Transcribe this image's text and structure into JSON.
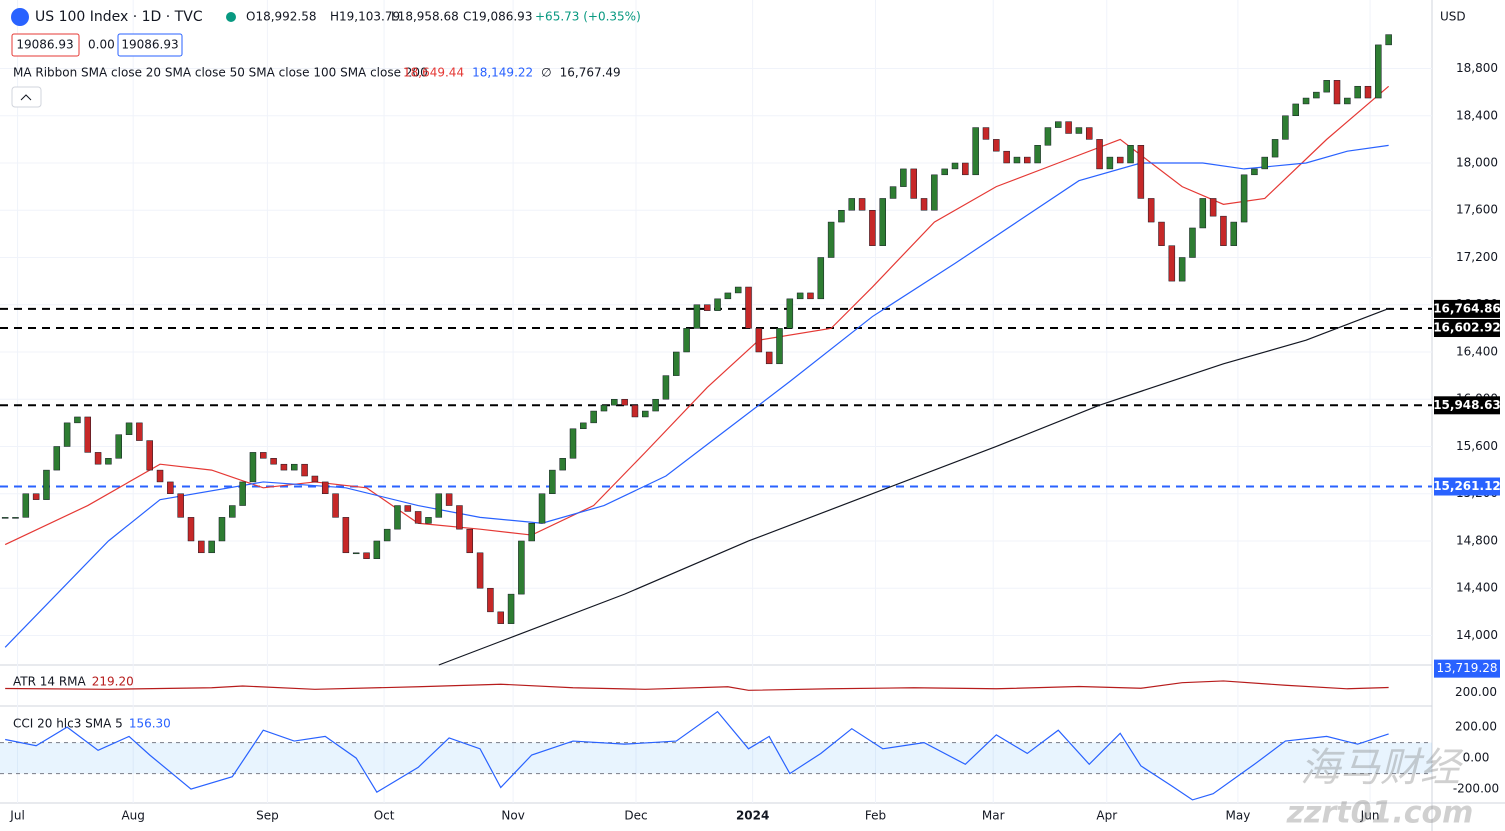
{
  "chart_data": {
    "type": "candlestick",
    "header": {
      "symbol": "US 100 Index · 1D · TVC",
      "open": "O18,992.58",
      "high": "H19,103.79",
      "low": "L18,958.68",
      "close": "C19,086.93",
      "change": "+65.73 (+0.35%)"
    },
    "price_boxes": [
      "19086.93",
      "0.00",
      "19086.93"
    ],
    "currency": "USD",
    "ma_legend": "MA Ribbon SMA close 20 SMA close 50 SMA close 100 SMA close 200",
    "ma_values": [
      {
        "label": "18,649.44",
        "color": "#e53935"
      },
      {
        "label": "18,149.22",
        "color": "#2962ff"
      },
      {
        "label": "∅",
        "color": "#131722"
      },
      {
        "label": "16,767.49",
        "color": "#131722"
      }
    ],
    "closes": [
      15000,
      15000,
      15200,
      15150,
      15400,
      15600,
      15800,
      15850,
      15550,
      15450,
      15500,
      15700,
      15800,
      15650,
      15400,
      15300,
      15200,
      15000,
      14800,
      14700,
      14800,
      15000,
      15100,
      15300,
      15550,
      15500,
      15450,
      15400,
      15450,
      15350,
      15300,
      15200,
      15000,
      14700,
      14700,
      14650,
      14800,
      14900,
      15100,
      15050,
      14950,
      15000,
      15200,
      15100,
      14900,
      14700,
      14400,
      14200,
      14100,
      14350,
      14800,
      14950,
      15200,
      15400,
      15500,
      15750,
      15800,
      15900,
      15950,
      16000,
      15950,
      15850,
      15900,
      16000,
      16200,
      16400,
      16600,
      16800,
      16750,
      16850,
      16900,
      16950,
      16600,
      16400,
      16300,
      16600,
      16850,
      16900,
      16850,
      17200,
      17500,
      17600,
      17700,
      17600,
      17300,
      17700,
      17800,
      17950,
      17700,
      17600,
      17900,
      17950,
      18000,
      17900,
      18300,
      18200,
      18100,
      18000,
      18050,
      18000,
      18150,
      18300,
      18350,
      18250,
      18300,
      18200,
      17950,
      18050,
      18000,
      18150,
      17700,
      17500,
      17300,
      17000,
      17200,
      17450,
      17700,
      17550,
      17300,
      17500,
      17900,
      17950,
      18050,
      18200,
      18400,
      18500,
      18550,
      18600,
      18700,
      18500,
      18550,
      18650,
      18550,
      19000,
      19086.93
    ],
    "color_up": "#2e7d32",
    "color_down": "#c62828",
    "xlim": [
      -0.5,
      138.2
    ],
    "xticks": [
      {
        "value": 1.2,
        "label": "Jul"
      },
      {
        "value": 12.4,
        "label": "Aug"
      },
      {
        "value": 25.4,
        "label": "Sep"
      },
      {
        "value": 36.7,
        "label": "Oct"
      },
      {
        "value": 49.2,
        "label": "Nov"
      },
      {
        "value": 61.1,
        "label": "Dec"
      },
      {
        "value": 72.4,
        "label": "2024"
      },
      {
        "value": 84.3,
        "label": "Feb"
      },
      {
        "value": 95.7,
        "label": "Mar"
      },
      {
        "value": 106.7,
        "label": "Apr"
      },
      {
        "value": 119.4,
        "label": "May"
      },
      {
        "value": 132.2,
        "label": "Jun"
      }
    ],
    "ylim": [
      13750,
      19380
    ],
    "yticks": [
      {
        "value": 14000,
        "label": "14,000"
      },
      {
        "value": 14400,
        "label": "14,400"
      },
      {
        "value": 14800,
        "label": "14,800"
      },
      {
        "value": 15200,
        "label": "15,200"
      },
      {
        "value": 15600,
        "label": "15,600"
      },
      {
        "value": 16000,
        "label": "16,000"
      },
      {
        "value": 16400,
        "label": "16,400"
      },
      {
        "value": 16800,
        "label": "16,800"
      },
      {
        "value": 17200,
        "label": "17,200"
      },
      {
        "value": 17600,
        "label": "17,600"
      },
      {
        "value": 18000,
        "label": "18,000"
      },
      {
        "value": 18400,
        "label": "18,400"
      },
      {
        "value": 18800,
        "label": "18,800"
      }
    ],
    "ma_lines": [
      {
        "color": "#e53935",
        "x": [
          0,
          8,
          15,
          20,
          25,
          30,
          35,
          40,
          46,
          51,
          57,
          62,
          68,
          73,
          80,
          84,
          90,
          96,
          102,
          108,
          114,
          118,
          122,
          128,
          134
        ],
        "values": [
          14770,
          15100,
          15450,
          15400,
          15250,
          15300,
          15250,
          14950,
          14900,
          14850,
          15100,
          15550,
          16100,
          16500,
          16600,
          16950,
          17500,
          17800,
          18000,
          18200,
          17800,
          17650,
          17700,
          18200,
          18649.44
        ]
      },
      {
        "color": "#2962ff",
        "x": [
          0,
          10,
          15,
          25,
          33,
          40,
          46,
          52,
          58,
          64,
          70,
          76,
          84,
          92,
          98,
          104,
          110,
          116,
          120,
          126,
          130,
          134
        ],
        "values": [
          13900,
          14800,
          15150,
          15300,
          15250,
          15100,
          15000,
          14950,
          15100,
          15350,
          15750,
          16150,
          16700,
          17150,
          17500,
          17850,
          18000,
          18000,
          17950,
          18000,
          18100,
          18149.22
        ]
      },
      {
        "color": "#131722",
        "x": [
          42,
          48,
          60,
          72,
          84,
          96,
          106,
          118,
          126,
          134
        ],
        "values": [
          13750,
          13950,
          14350,
          14800,
          15200,
          15600,
          15950,
          16300,
          16500,
          16767.49
        ]
      }
    ],
    "levels": [
      {
        "value": 16764.86,
        "label": "16,764.86",
        "color": "#000000"
      },
      {
        "value": 16602.92,
        "label": "16,602.92",
        "color": "#000000"
      },
      {
        "value": 15948.63,
        "label": "15,948.63",
        "color": "#000000"
      },
      {
        "value": 15261.12,
        "label": "15,261.12",
        "color": "#2962ff"
      }
    ],
    "axis_marks": [
      {
        "value": 13719.28,
        "label": "13,719.28",
        "color": "#2962ff"
      }
    ],
    "atr": {
      "label": "ATR 14 RMA",
      "value_label": "219.20",
      "color": "#b71c1c",
      "ylim": [
        150,
        300
      ],
      "yticks": [
        {
          "value": 200,
          "label": "200.00"
        }
      ],
      "x": [
        0,
        10,
        20,
        23,
        30,
        40,
        48,
        55,
        62,
        70,
        72,
        80,
        88,
        96,
        104,
        110,
        114,
        118,
        124,
        130,
        134
      ],
      "values": [
        215,
        212,
        218,
        225,
        212,
        222,
        232,
        218,
        212,
        222,
        208,
        214,
        218,
        214,
        223,
        216,
        238,
        245,
        228,
        214,
        219.2
      ]
    },
    "cci": {
      "label": "CCI 20 hlc3 SMA 5",
      "value_label": "156.30",
      "color": "#2962ff",
      "ylim": [
        -290,
        330
      ],
      "band": [
        -100,
        100
      ],
      "yticks": [
        {
          "value": 200,
          "label": "200.00"
        },
        {
          "value": 0,
          "label": "0.00"
        },
        {
          "value": -200,
          "label": "-200.00"
        }
      ],
      "x": [
        0,
        3,
        6,
        9,
        12,
        14,
        18,
        22,
        25,
        28,
        31,
        34,
        36,
        40,
        43,
        46,
        48,
        51,
        55,
        60,
        65,
        69,
        72,
        74,
        76,
        79,
        82,
        85,
        89,
        93,
        96,
        99,
        102,
        105,
        108,
        110,
        113,
        115,
        117,
        121,
        124,
        128,
        131,
        134
      ],
      "values": [
        120,
        80,
        200,
        50,
        140,
        20,
        -200,
        -120,
        180,
        110,
        140,
        0,
        -220,
        -60,
        130,
        60,
        -190,
        20,
        110,
        90,
        110,
        300,
        60,
        140,
        -100,
        30,
        190,
        60,
        100,
        -40,
        150,
        30,
        180,
        -40,
        160,
        -50,
        -180,
        -270,
        -230,
        -40,
        110,
        140,
        90,
        156.3
      ]
    },
    "watermark": [
      "海马财经",
      "zzrt01.com"
    ]
  }
}
